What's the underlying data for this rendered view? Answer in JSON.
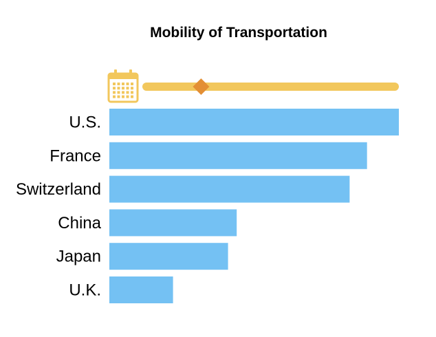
{
  "chart_data": {
    "type": "bar",
    "orientation": "horizontal",
    "title": "Mobility of Transportation",
    "categories": [
      "U.S.",
      "France",
      "Switzerland",
      "China",
      "Japan",
      "U.K."
    ],
    "values": [
      100,
      89,
      83,
      44,
      41,
      22
    ],
    "xlim": [
      0,
      100
    ],
    "grid": false,
    "legend": "none",
    "slider": {
      "icon": "calendar-icon",
      "position": 0.22
    },
    "colors": {
      "bar": "#74c1f3",
      "slider_track": "#f2c75c",
      "slider_handle": "#e38f34",
      "calendar_icon": "#f2c75c"
    }
  }
}
